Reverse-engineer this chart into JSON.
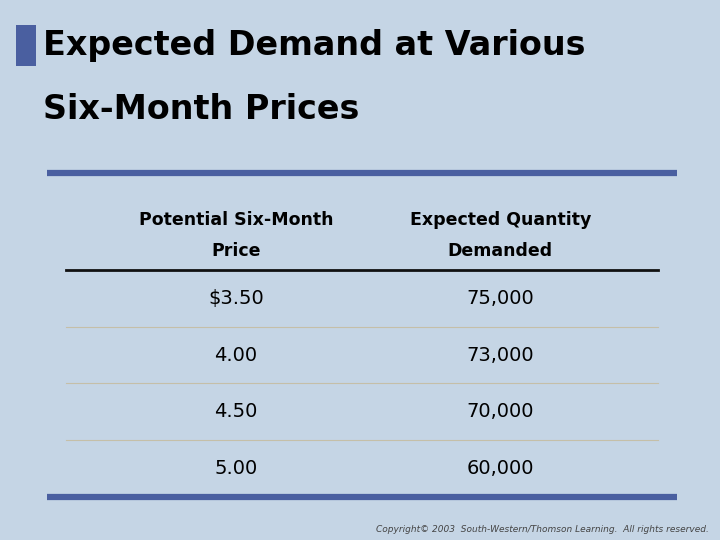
{
  "title_line1": "Expected Demand at Various",
  "title_line2": "Six-Month Prices",
  "title_bg_color": "#FFFFF0",
  "title_border_color": "#AAAAAA",
  "title_text_color": "#000000",
  "title_square_color": "#4A5FA0",
  "col1_header_line1": "Potential Six-Month",
  "col1_header_line2": "Price",
  "col2_header_line1": "Expected Quantity",
  "col2_header_line2": "Demanded",
  "prices": [
    "$3.50",
    "4.00",
    "4.50",
    "5.00"
  ],
  "quantities": [
    "75,000",
    "73,000",
    "70,000",
    "60,000"
  ],
  "table_bg_color": "#EEE9D8",
  "table_border_color": "#4A5FA0",
  "table_header_line_color": "#111111",
  "table_row_line_color": "#C5BFA8",
  "header_text_color": "#000000",
  "data_text_color": "#000000",
  "bg_color": "#C5D5E5",
  "copyright_text": "Copyright© 2003  South-Western/Thomson Learning.  All rights reserved.",
  "copyright_color": "#444444"
}
